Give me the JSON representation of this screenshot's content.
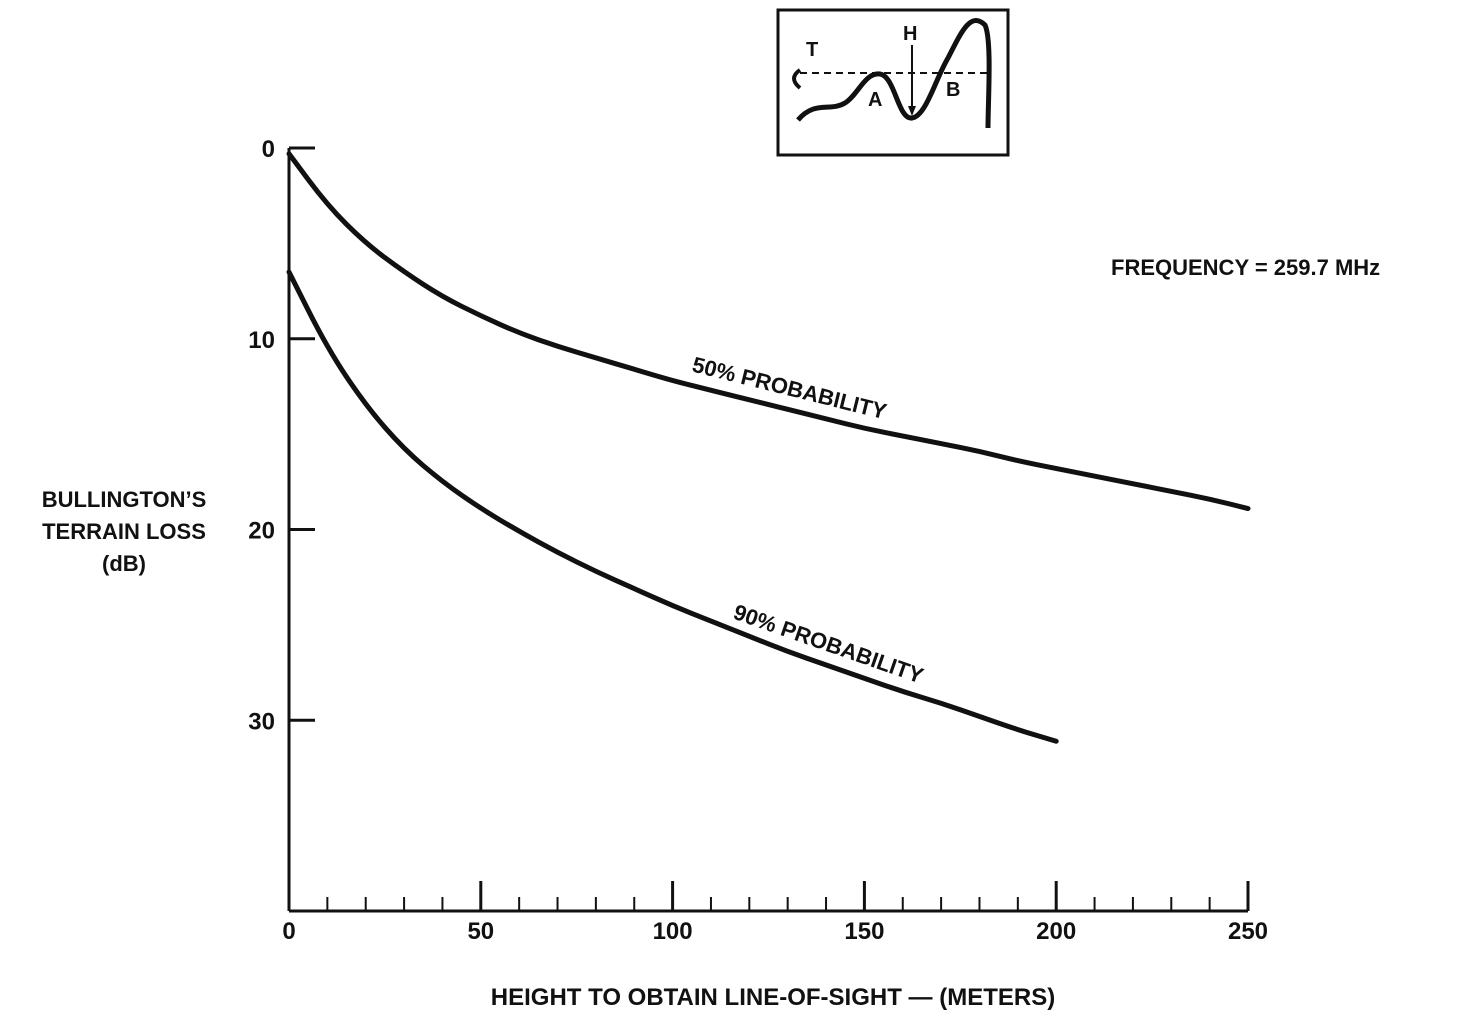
{
  "chart_data": {
    "type": "line",
    "title": "",
    "xlabel": "HEIGHT TO OBTAIN LINE-OF-SIGHT — (METERS)",
    "ylabel_lines": [
      "BULLINGTON’S",
      "TERRAIN LOSS",
      "(dB)"
    ],
    "annotation": "FREQUENCY = 259.7 MHz",
    "xlim": [
      0,
      250
    ],
    "ylim": [
      0,
      40
    ],
    "y_inverted": true,
    "grid": false,
    "x_ticks": [
      0,
      50,
      100,
      150,
      200,
      250
    ],
    "y_ticks": [
      0,
      10,
      20,
      30
    ],
    "series": [
      {
        "name": "50% PROBABILITY",
        "x": [
          0,
          10,
          20,
          30,
          40,
          50,
          60,
          70,
          80,
          90,
          100,
          110,
          120,
          130,
          140,
          150,
          160,
          170,
          180,
          190,
          200,
          210,
          220,
          230,
          240,
          250
        ],
        "y": [
          0.3,
          3.0,
          5.0,
          6.5,
          7.8,
          8.8,
          9.7,
          10.4,
          11.0,
          11.6,
          12.2,
          12.7,
          13.2,
          13.7,
          14.2,
          14.7,
          15.1,
          15.5,
          15.9,
          16.4,
          16.8,
          17.2,
          17.6,
          18.0,
          18.4,
          18.9
        ]
      },
      {
        "name": "90% PROBABILITY",
        "x": [
          0,
          10,
          20,
          30,
          40,
          50,
          60,
          70,
          80,
          90,
          100,
          110,
          120,
          130,
          140,
          150,
          160,
          170,
          180,
          190,
          200
        ],
        "y": [
          6.5,
          10.5,
          13.5,
          15.8,
          17.5,
          18.9,
          20.1,
          21.2,
          22.2,
          23.1,
          24.0,
          24.8,
          25.6,
          26.4,
          27.1,
          27.8,
          28.5,
          29.1,
          29.8,
          30.5,
          31.1
        ]
      }
    ]
  },
  "inset": {
    "labels": [
      "T",
      "H",
      "A",
      "B"
    ]
  }
}
